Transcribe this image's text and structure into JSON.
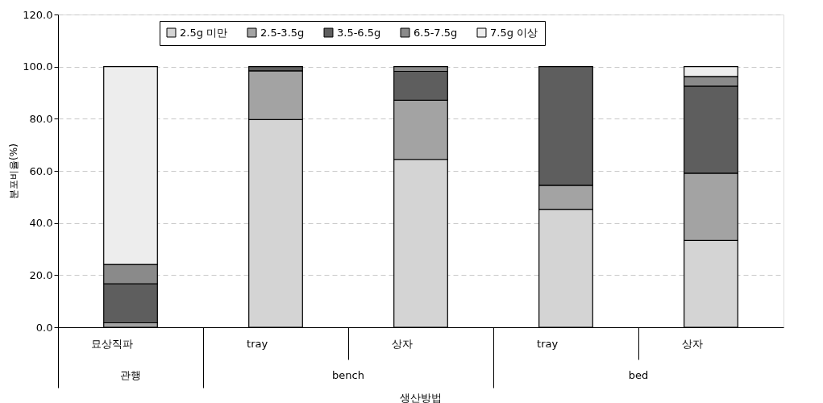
{
  "chart_data": {
    "type": "bar",
    "stacked": true,
    "xlabel": "생산방법",
    "ylabel": "분포비율(%)",
    "categories": [
      "묘상직파",
      "tray",
      "상자",
      "tray",
      "상자"
    ],
    "annotations": [
      "관행",
      "bench",
      "bed"
    ],
    "series": [
      {
        "name": "2.5g 미만",
        "color": "#d4d4d4",
        "values": [
          0,
          79.7,
          64.4,
          45.3,
          33.3
        ]
      },
      {
        "name": "2.5-3.5g",
        "color": "#a3a3a3",
        "values": [
          1.7,
          18.7,
          22.7,
          9.2,
          25.8
        ]
      },
      {
        "name": "3.5-6.5g",
        "color": "#5e5e5e",
        "values": [
          15.0,
          1.6,
          11.1,
          45.5,
          33.4
        ]
      },
      {
        "name": "6.5-7.5g",
        "color": "#8a8a8a",
        "values": [
          7.4,
          0,
          1.8,
          0,
          3.7
        ]
      },
      {
        "name": "7.5g 이상",
        "color": "#ededed",
        "values": [
          75.9,
          0,
          0,
          0,
          3.8
        ]
      }
    ],
    "ylim": [
      0,
      120
    ],
    "yticks": [
      {
        "value": 0,
        "label": "0.0"
      },
      {
        "value": 20,
        "label": "20.0"
      },
      {
        "value": 40,
        "label": "40.0"
      },
      {
        "value": 60,
        "label": "60.0"
      },
      {
        "value": 80,
        "label": "80.0"
      },
      {
        "value": 100,
        "label": "100.0"
      },
      {
        "value": 120,
        "label": "120.0"
      }
    ],
    "grid": "y",
    "legend": "top"
  }
}
